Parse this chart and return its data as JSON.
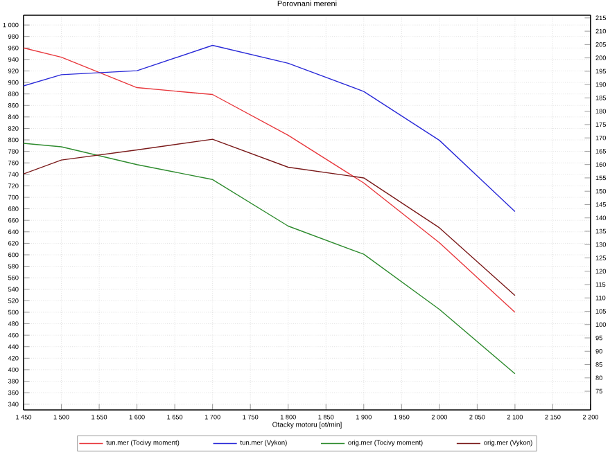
{
  "chart_data": {
    "type": "line",
    "title": "Porovnani mereni",
    "xlabel": "Otacky motoru [ot/min]",
    "x": [
      1450,
      1500,
      1600,
      1700,
      1800,
      1900,
      2000,
      2100
    ],
    "series": [
      {
        "name": "tun.mer (Tocivy moment)",
        "color": "#e8383d",
        "axis": "y",
        "values": [
          960,
          944,
          891,
          879,
          808,
          725,
          621,
          500
        ]
      },
      {
        "name": "tun.mer (Vykon)",
        "color": "#2a2ad8",
        "axis": "y2",
        "values": [
          189.5,
          193.7,
          195.2,
          204.7,
          198,
          187.4,
          169.1,
          142.4
        ]
      },
      {
        "name": "orig.mer (Tocivy moment)",
        "color": "#2e8b2e",
        "axis": "y",
        "values": [
          794,
          788,
          757,
          731,
          650,
          601,
          505,
          393
        ]
      },
      {
        "name": "orig.mer (Vykon)",
        "color": "#7a1a1a",
        "axis": "y2",
        "values": [
          156.5,
          161.7,
          165.5,
          169.5,
          159,
          155,
          136.3,
          110.9
        ]
      }
    ],
    "xlim": [
      1450,
      2200
    ],
    "xticks": [
      {
        "value": 1450,
        "label": "1 450"
      },
      {
        "value": 1500,
        "label": "1 500"
      },
      {
        "value": 1550,
        "label": "1 550"
      },
      {
        "value": 1600,
        "label": "1 600"
      },
      {
        "value": 1650,
        "label": "1 650"
      },
      {
        "value": 1700,
        "label": "1 700"
      },
      {
        "value": 1750,
        "label": "1 750"
      },
      {
        "value": 1800,
        "label": "1 800"
      },
      {
        "value": 1850,
        "label": "1 850"
      },
      {
        "value": 1900,
        "label": "1 900"
      },
      {
        "value": 1950,
        "label": "1 950"
      },
      {
        "value": 2000,
        "label": "2 000"
      },
      {
        "value": 2050,
        "label": "2 050"
      },
      {
        "value": 2100,
        "label": "2 100"
      },
      {
        "value": 2150,
        "label": "2 150"
      },
      {
        "value": 2200,
        "label": "2 200"
      }
    ],
    "ylim": [
      330,
      1017
    ],
    "yticks": [
      340,
      360,
      380,
      400,
      420,
      440,
      460,
      480,
      500,
      520,
      540,
      560,
      580,
      600,
      620,
      640,
      660,
      680,
      700,
      720,
      740,
      760,
      780,
      800,
      820,
      840,
      860,
      880,
      900,
      920,
      940,
      960,
      980,
      {
        "value": 1000,
        "label": "1 000"
      }
    ],
    "y2lim": [
      68,
      216
    ],
    "y2ticks": [
      75,
      80,
      85,
      90,
      95,
      100,
      105,
      110,
      115,
      120,
      125,
      130,
      135,
      140,
      145,
      150,
      155,
      160,
      165,
      170,
      175,
      180,
      185,
      190,
      195,
      200,
      205,
      210,
      215
    ],
    "grid": true,
    "legend": "bottom",
    "marker": "none",
    "line_style": "solid"
  }
}
